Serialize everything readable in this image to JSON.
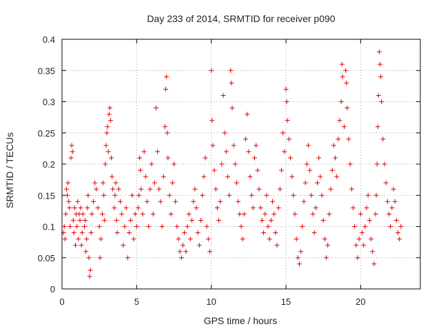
{
  "chart_data": {
    "type": "scatter",
    "title": "Day 233 of 2014, SRMTID for receiver p090",
    "xlabel": "GPS time / hours",
    "ylabel": "SRMTID / TECUs",
    "xlim": [
      0,
      24
    ],
    "ylim": [
      0,
      0.4
    ],
    "x_ticks": [
      0,
      5,
      10,
      15,
      20
    ],
    "x_tick_labels": [
      "0",
      "5",
      "10",
      "15",
      "20"
    ],
    "y_ticks": [
      0,
      0.05,
      0.1,
      0.15,
      0.2,
      0.25,
      0.3,
      0.35,
      0.4
    ],
    "y_tick_labels": [
      "0",
      "0.05",
      "0.1",
      "0.15",
      "0.2",
      "0.25",
      "0.3",
      "0.35",
      "0.4"
    ],
    "grid": true,
    "marker": "+",
    "color": "#e00000",
    "series": [
      {
        "name": "SRMTID",
        "points": [
          [
            0.1,
            0.09
          ],
          [
            0.15,
            0.1
          ],
          [
            0.2,
            0.08
          ],
          [
            0.25,
            0.12
          ],
          [
            0.3,
            0.16
          ],
          [
            0.35,
            0.15
          ],
          [
            0.4,
            0.17
          ],
          [
            0.45,
            0.14
          ],
          [
            0.5,
            0.13
          ],
          [
            0.55,
            0.1
          ],
          [
            0.6,
            0.21
          ],
          [
            0.65,
            0.23
          ],
          [
            0.7,
            0.22
          ],
          [
            0.75,
            0.11
          ],
          [
            0.8,
            0.09
          ],
          [
            0.85,
            0.13
          ],
          [
            0.9,
            0.07
          ],
          [
            0.95,
            0.12
          ],
          [
            1.0,
            0.1
          ],
          [
            1.05,
            0.14
          ],
          [
            1.1,
            0.08
          ],
          [
            1.15,
            0.12
          ],
          [
            1.2,
            0.11
          ],
          [
            1.25,
            0.13
          ],
          [
            1.3,
            0.07
          ],
          [
            1.35,
            0.09
          ],
          [
            1.4,
            0.12
          ],
          [
            1.5,
            0.1
          ],
          [
            1.55,
            0.11
          ],
          [
            1.6,
            0.06
          ],
          [
            1.65,
            0.08
          ],
          [
            1.7,
            0.13
          ],
          [
            1.75,
            0.15
          ],
          [
            1.8,
            0.05
          ],
          [
            1.85,
            0.02
          ],
          [
            1.9,
            0.03
          ],
          [
            1.95,
            0.09
          ],
          [
            2.0,
            0.12
          ],
          [
            2.1,
            0.14
          ],
          [
            2.2,
            0.17
          ],
          [
            2.3,
            0.16
          ],
          [
            2.4,
            0.13
          ],
          [
            2.5,
            0.1
          ],
          [
            2.55,
            0.05
          ],
          [
            2.6,
            0.08
          ],
          [
            2.7,
            0.12
          ],
          [
            2.75,
            0.17
          ],
          [
            2.8,
            0.15
          ],
          [
            2.85,
            0.11
          ],
          [
            2.9,
            0.2
          ],
          [
            2.95,
            0.23
          ],
          [
            3.0,
            0.25
          ],
          [
            3.05,
            0.26
          ],
          [
            3.1,
            0.22
          ],
          [
            3.15,
            0.28
          ],
          [
            3.2,
            0.29
          ],
          [
            3.25,
            0.27
          ],
          [
            3.3,
            0.21
          ],
          [
            3.35,
            0.18
          ],
          [
            3.4,
            0.16
          ],
          [
            3.5,
            0.13
          ],
          [
            3.55,
            0.15
          ],
          [
            3.6,
            0.17
          ],
          [
            3.65,
            0.11
          ],
          [
            3.7,
            0.09
          ],
          [
            3.8,
            0.16
          ],
          [
            3.9,
            0.14
          ],
          [
            4.0,
            0.12
          ],
          [
            4.1,
            0.07
          ],
          [
            4.2,
            0.1
          ],
          [
            4.3,
            0.13
          ],
          [
            4.4,
            0.05
          ],
          [
            4.5,
            0.09
          ],
          [
            4.6,
            0.11
          ],
          [
            4.7,
            0.15
          ],
          [
            4.8,
            0.08
          ],
          [
            4.9,
            0.12
          ],
          [
            5.0,
            0.1
          ],
          [
            5.1,
            0.13
          ],
          [
            5.15,
            0.15
          ],
          [
            5.2,
            0.21
          ],
          [
            5.25,
            0.19
          ],
          [
            5.3,
            0.16
          ],
          [
            5.4,
            0.12
          ],
          [
            5.5,
            0.22
          ],
          [
            5.6,
            0.18
          ],
          [
            5.7,
            0.14
          ],
          [
            5.8,
            0.1
          ],
          [
            5.9,
            0.16
          ],
          [
            6.0,
            0.2
          ],
          [
            6.1,
            0.12
          ],
          [
            6.2,
            0.17
          ],
          [
            6.3,
            0.29
          ],
          [
            6.4,
            0.22
          ],
          [
            6.5,
            0.16
          ],
          [
            6.6,
            0.14
          ],
          [
            6.7,
            0.1
          ],
          [
            6.8,
            0.18
          ],
          [
            6.9,
            0.26
          ],
          [
            6.95,
            0.32
          ],
          [
            7.0,
            0.34
          ],
          [
            7.05,
            0.25
          ],
          [
            7.1,
            0.21
          ],
          [
            7.2,
            0.15
          ],
          [
            7.3,
            0.12
          ],
          [
            7.4,
            0.17
          ],
          [
            7.5,
            0.2
          ],
          [
            7.6,
            0.14
          ],
          [
            7.7,
            0.1
          ],
          [
            7.8,
            0.08
          ],
          [
            7.9,
            0.06
          ],
          [
            8.0,
            0.05
          ],
          [
            8.1,
            0.07
          ],
          [
            8.2,
            0.09
          ],
          [
            8.3,
            0.06
          ],
          [
            8.4,
            0.1
          ],
          [
            8.5,
            0.12
          ],
          [
            8.6,
            0.08
          ],
          [
            8.7,
            0.11
          ],
          [
            8.8,
            0.14
          ],
          [
            8.9,
            0.16
          ],
          [
            9.0,
            0.13
          ],
          [
            9.1,
            0.09
          ],
          [
            9.2,
            0.07
          ],
          [
            9.3,
            0.11
          ],
          [
            9.4,
            0.15
          ],
          [
            9.5,
            0.18
          ],
          [
            9.6,
            0.21
          ],
          [
            9.7,
            0.1
          ],
          [
            9.8,
            0.08
          ],
          [
            9.9,
            0.06
          ],
          [
            10.0,
            0.35
          ],
          [
            10.05,
            0.27
          ],
          [
            10.1,
            0.23
          ],
          [
            10.2,
            0.19
          ],
          [
            10.3,
            0.16
          ],
          [
            10.4,
            0.13
          ],
          [
            10.5,
            0.11
          ],
          [
            10.6,
            0.14
          ],
          [
            10.7,
            0.2
          ],
          [
            10.8,
            0.31
          ],
          [
            10.9,
            0.25
          ],
          [
            11.0,
            0.22
          ],
          [
            11.1,
            0.18
          ],
          [
            11.2,
            0.15
          ],
          [
            11.3,
            0.35
          ],
          [
            11.35,
            0.33
          ],
          [
            11.4,
            0.29
          ],
          [
            11.5,
            0.23
          ],
          [
            11.6,
            0.2
          ],
          [
            11.7,
            0.17
          ],
          [
            11.8,
            0.14
          ],
          [
            11.9,
            0.12
          ],
          [
            12.0,
            0.1
          ],
          [
            12.1,
            0.08
          ],
          [
            12.2,
            0.12
          ],
          [
            12.3,
            0.24
          ],
          [
            12.4,
            0.28
          ],
          [
            12.5,
            0.22
          ],
          [
            12.6,
            0.18
          ],
          [
            12.7,
            0.15
          ],
          [
            12.8,
            0.13
          ],
          [
            12.9,
            0.21
          ],
          [
            13.0,
            0.23
          ],
          [
            13.1,
            0.19
          ],
          [
            13.2,
            0.16
          ],
          [
            13.3,
            0.13
          ],
          [
            13.4,
            0.11
          ],
          [
            13.5,
            0.09
          ],
          [
            13.6,
            0.12
          ],
          [
            13.7,
            0.15
          ],
          [
            13.8,
            0.1
          ],
          [
            13.9,
            0.08
          ],
          [
            14.0,
            0.11
          ],
          [
            14.1,
            0.14
          ],
          [
            14.2,
            0.12
          ],
          [
            14.3,
            0.09
          ],
          [
            14.4,
            0.07
          ],
          [
            14.5,
            0.13
          ],
          [
            14.6,
            0.16
          ],
          [
            14.7,
            0.19
          ],
          [
            14.8,
            0.25
          ],
          [
            14.9,
            0.22
          ],
          [
            15.0,
            0.32
          ],
          [
            15.05,
            0.3
          ],
          [
            15.1,
            0.27
          ],
          [
            15.2,
            0.24
          ],
          [
            15.3,
            0.21
          ],
          [
            15.4,
            0.18
          ],
          [
            15.5,
            0.15
          ],
          [
            15.6,
            0.12
          ],
          [
            15.7,
            0.08
          ],
          [
            15.8,
            0.05
          ],
          [
            15.9,
            0.04
          ],
          [
            16.0,
            0.06
          ],
          [
            16.1,
            0.1
          ],
          [
            16.2,
            0.14
          ],
          [
            16.3,
            0.17
          ],
          [
            16.4,
            0.2
          ],
          [
            16.5,
            0.23
          ],
          [
            16.6,
            0.19
          ],
          [
            16.7,
            0.15
          ],
          [
            16.8,
            0.12
          ],
          [
            16.9,
            0.09
          ],
          [
            17.0,
            0.13
          ],
          [
            17.1,
            0.17
          ],
          [
            17.2,
            0.21
          ],
          [
            17.3,
            0.18
          ],
          [
            17.4,
            0.15
          ],
          [
            17.5,
            0.11
          ],
          [
            17.6,
            0.08
          ],
          [
            17.7,
            0.05
          ],
          [
            17.8,
            0.07
          ],
          [
            17.9,
            0.12
          ],
          [
            18.0,
            0.16
          ],
          [
            18.1,
            0.19
          ],
          [
            18.2,
            0.23
          ],
          [
            18.3,
            0.21
          ],
          [
            18.4,
            0.18
          ],
          [
            18.5,
            0.24
          ],
          [
            18.6,
            0.27
          ],
          [
            18.7,
            0.3
          ],
          [
            18.75,
            0.36
          ],
          [
            18.8,
            0.34
          ],
          [
            18.9,
            0.26
          ],
          [
            19.0,
            0.35
          ],
          [
            19.05,
            0.33
          ],
          [
            19.1,
            0.29
          ],
          [
            19.2,
            0.24
          ],
          [
            19.3,
            0.2
          ],
          [
            19.4,
            0.16
          ],
          [
            19.5,
            0.13
          ],
          [
            19.6,
            0.1
          ],
          [
            19.7,
            0.07
          ],
          [
            19.8,
            0.05
          ],
          [
            19.9,
            0.08
          ],
          [
            20.0,
            0.12
          ],
          [
            20.1,
            0.09
          ],
          [
            20.2,
            0.07
          ],
          [
            20.3,
            0.1
          ],
          [
            20.4,
            0.13
          ],
          [
            20.5,
            0.15
          ],
          [
            20.6,
            0.11
          ],
          [
            20.7,
            0.08
          ],
          [
            20.8,
            0.06
          ],
          [
            20.9,
            0.04
          ],
          [
            21.0,
            0.12
          ],
          [
            21.05,
            0.15
          ],
          [
            21.1,
            0.2
          ],
          [
            21.15,
            0.26
          ],
          [
            21.2,
            0.31
          ],
          [
            21.25,
            0.38
          ],
          [
            21.3,
            0.36
          ],
          [
            21.35,
            0.34
          ],
          [
            21.4,
            0.3
          ],
          [
            21.5,
            0.24
          ],
          [
            21.6,
            0.2
          ],
          [
            21.7,
            0.17
          ],
          [
            21.8,
            0.14
          ],
          [
            21.9,
            0.12
          ],
          [
            22.0,
            0.1
          ],
          [
            22.1,
            0.13
          ],
          [
            22.2,
            0.16
          ],
          [
            22.3,
            0.14
          ],
          [
            22.4,
            0.11
          ],
          [
            22.5,
            0.09
          ],
          [
            22.6,
            0.08
          ],
          [
            22.7,
            0.1
          ]
        ]
      }
    ]
  }
}
